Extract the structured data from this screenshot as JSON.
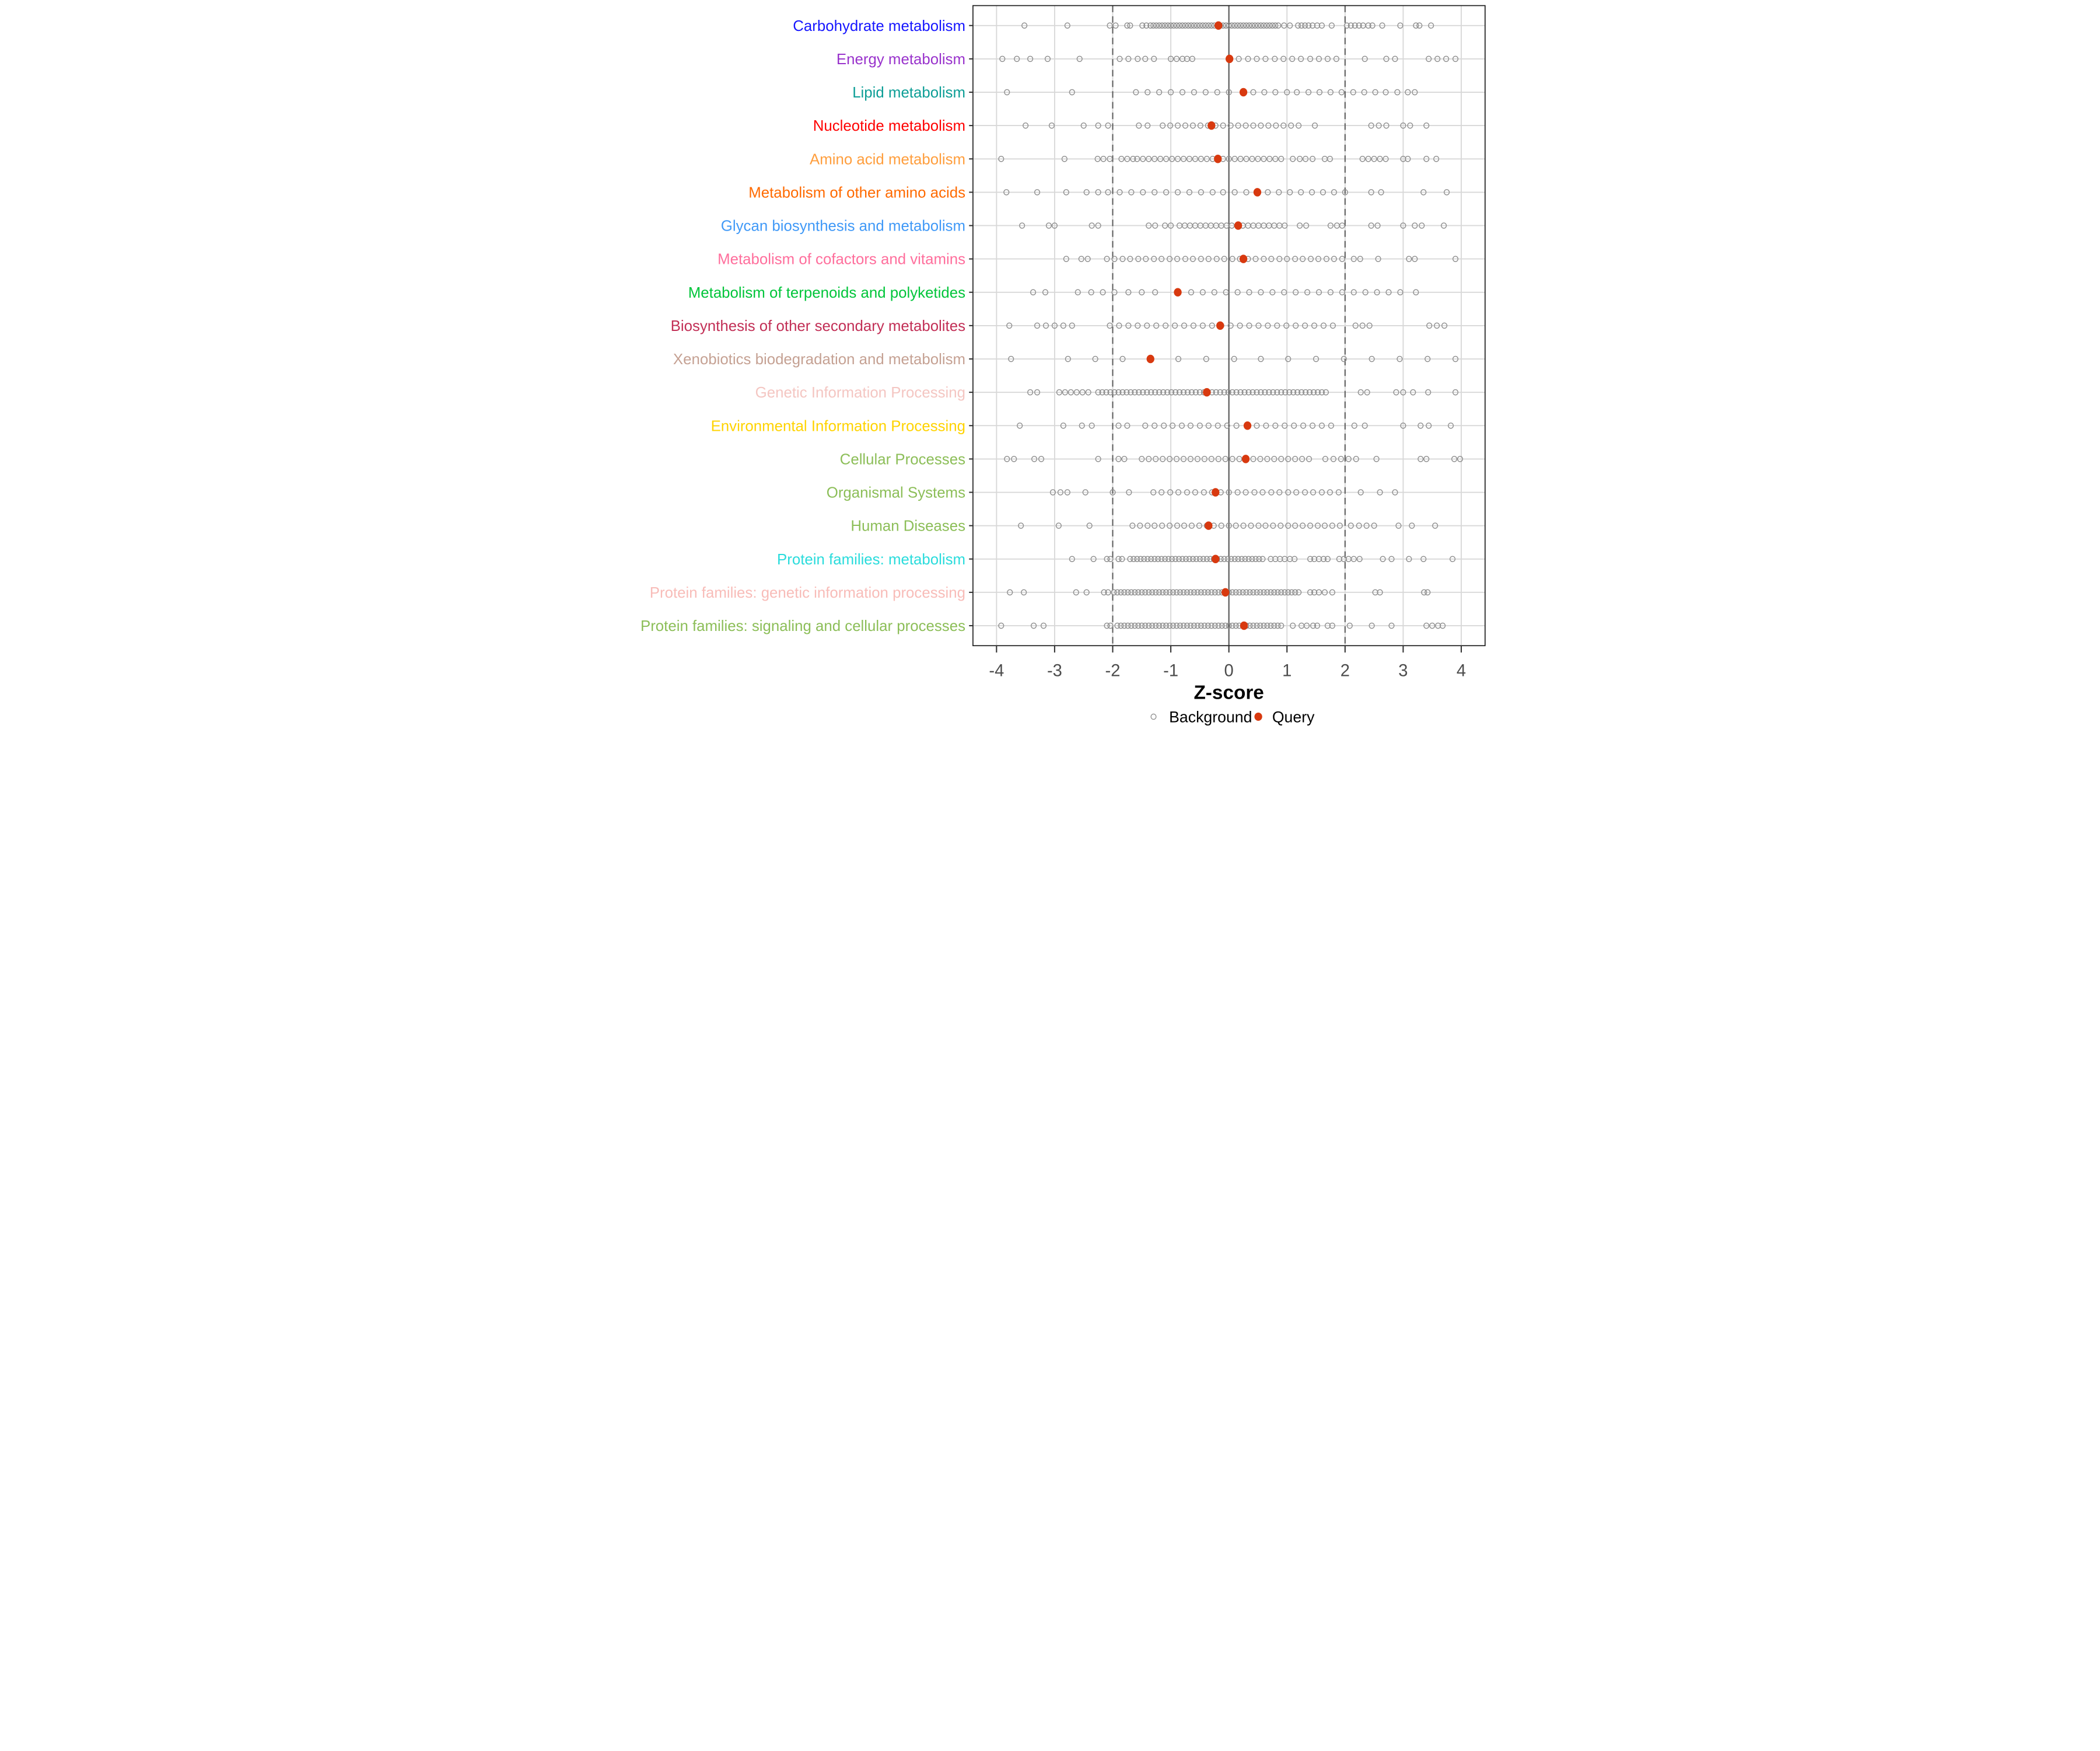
{
  "chart_data": {
    "type": "scatter",
    "subtype": "strip-dot-plot",
    "title": "",
    "xlabel": "Z-score",
    "ylabel": "",
    "xlim": [
      -4.4,
      4.4
    ],
    "x_ticks": [
      -4,
      -3,
      -2,
      -1,
      0,
      1,
      2,
      3,
      4
    ],
    "x_tick_labels": [
      "-4",
      "-3",
      "-2",
      "-1",
      "0",
      "1",
      "2",
      "3",
      "4"
    ],
    "grid": true,
    "reference_lines": {
      "solid_at": 0,
      "dashed_at": [
        -2,
        2
      ]
    },
    "legend_position": "bottom",
    "legend": [
      {
        "label": "Background",
        "marker": "open-circle",
        "color": "#8E8E8E"
      },
      {
        "label": "Query",
        "marker": "filled-circle",
        "color": "#D8390F"
      }
    ],
    "colors": {
      "query": "#D8390F",
      "background_stroke": "#8E8E8E",
      "grid_light": "#D8D8D8",
      "dashed_line": "#5E5E5E",
      "zero_line": "#555555",
      "panel_border": "#1A1A1A",
      "axis_text": "#4D4D4D",
      "axis_title": "#000000"
    },
    "rows": [
      {
        "label": "Carbohydrate metabolism",
        "label_color": "#1616FF",
        "query": -0.18,
        "background": [
          -3.52,
          -2.78,
          -2.05,
          -1.95,
          -1.75,
          -1.7,
          -1.49,
          -1.42,
          -1.35,
          -1.3,
          -1.25,
          -1.2,
          -1.15,
          -1.1,
          -1.05,
          -1.0,
          -0.95,
          -0.9,
          -0.85,
          -0.8,
          -0.75,
          -0.7,
          -0.65,
          -0.6,
          -0.55,
          -0.5,
          -0.45,
          -0.4,
          -0.35,
          -0.3,
          -0.25,
          -0.2,
          -0.15,
          -0.1,
          -0.05,
          0.0,
          0.05,
          0.1,
          0.15,
          0.2,
          0.25,
          0.3,
          0.35,
          0.4,
          0.45,
          0.5,
          0.55,
          0.6,
          0.65,
          0.7,
          0.75,
          0.8,
          0.85,
          0.95,
          1.05,
          1.19,
          1.25,
          1.31,
          1.37,
          1.44,
          1.52,
          1.6,
          1.77,
          2.03,
          2.1,
          2.17,
          2.24,
          2.31,
          2.4,
          2.47,
          2.64,
          2.95,
          3.22,
          3.28,
          3.48
        ]
      },
      {
        "label": "Energy metabolism",
        "label_color": "#9933CC",
        "query": 0.01,
        "background": [
          -3.9,
          -3.65,
          -3.42,
          -3.12,
          -2.57,
          -1.88,
          -1.73,
          -1.57,
          -1.44,
          -1.29,
          -1.0,
          -0.9,
          -0.8,
          -0.72,
          -0.63,
          0.02,
          0.17,
          0.33,
          0.48,
          0.63,
          0.79,
          0.94,
          1.09,
          1.24,
          1.4,
          1.55,
          1.7,
          1.85,
          2.34,
          2.71,
          2.86,
          3.44,
          3.59,
          3.74,
          3.9
        ]
      },
      {
        "label": "Lipid metabolism",
        "label_color": "#0D9E96",
        "query": 0.25,
        "background": [
          -3.82,
          -2.7,
          -1.6,
          -1.4,
          -1.2,
          -1.0,
          -0.8,
          -0.6,
          -0.4,
          -0.2,
          0.0,
          0.42,
          0.61,
          0.8,
          1.0,
          1.17,
          1.37,
          1.56,
          1.75,
          1.94,
          2.14,
          2.33,
          2.52,
          2.7,
          2.9,
          3.08,
          3.2
        ]
      },
      {
        "label": "Nucleotide metabolism",
        "label_color": "#FF0000",
        "query": -0.3,
        "background": [
          -3.5,
          -3.05,
          -2.5,
          -2.25,
          -2.08,
          -1.55,
          -1.4,
          -1.14,
          -1.01,
          -0.88,
          -0.75,
          -0.62,
          -0.49,
          -0.36,
          -0.23,
          -0.1,
          0.03,
          0.16,
          0.29,
          0.42,
          0.55,
          0.68,
          0.81,
          0.94,
          1.07,
          1.2,
          1.48,
          2.45,
          2.58,
          2.71,
          3.0,
          3.12,
          3.4
        ]
      },
      {
        "label": "Amino acid metabolism",
        "label_color": "#FF9E3D",
        "query": -0.19,
        "background": [
          -3.92,
          -2.83,
          -2.26,
          -2.16,
          -2.05,
          -1.85,
          -1.75,
          -1.65,
          -1.58,
          -1.48,
          -1.38,
          -1.28,
          -1.18,
          -1.08,
          -0.98,
          -0.88,
          -0.78,
          -0.68,
          -0.58,
          -0.48,
          -0.38,
          -0.28,
          -0.1,
          0.0,
          0.1,
          0.2,
          0.3,
          0.4,
          0.5,
          0.6,
          0.7,
          0.8,
          0.9,
          1.1,
          1.22,
          1.32,
          1.44,
          1.65,
          1.74,
          2.3,
          2.4,
          2.5,
          2.6,
          2.7,
          3.0,
          3.08,
          3.4,
          3.57
        ]
      },
      {
        "label": "Metabolism of other amino acids",
        "label_color": "#FF6A00",
        "query": 0.49,
        "background": [
          -3.83,
          -3.3,
          -2.8,
          -2.45,
          -2.25,
          -2.08,
          -1.88,
          -1.68,
          -1.48,
          -1.28,
          -1.08,
          -0.88,
          -0.68,
          -0.48,
          -0.28,
          -0.1,
          0.1,
          0.3,
          0.67,
          0.86,
          1.05,
          1.24,
          1.43,
          1.62,
          1.81,
          2.0,
          2.45,
          2.62,
          3.35,
          3.75
        ]
      },
      {
        "label": "Glycan biosynthesis and metabolism",
        "label_color": "#4099F7",
        "query": 0.16,
        "background": [
          -3.56,
          -3.1,
          -3.0,
          -2.36,
          -2.25,
          -1.38,
          -1.27,
          -1.1,
          -1.0,
          -0.85,
          -0.76,
          -0.67,
          -0.58,
          -0.49,
          -0.4,
          -0.31,
          -0.22,
          -0.13,
          -0.04,
          0.05,
          0.24,
          0.33,
          0.42,
          0.51,
          0.6,
          0.69,
          0.78,
          0.87,
          0.96,
          1.22,
          1.33,
          1.75,
          1.86,
          1.95,
          2.45,
          2.56,
          3.0,
          3.2,
          3.32,
          3.7
        ]
      },
      {
        "label": "Metabolism of cofactors and vitamins",
        "label_color": "#FF6E9C",
        "query": 0.25,
        "background": [
          -2.8,
          -2.54,
          -2.43,
          -2.1,
          -1.97,
          -1.83,
          -1.7,
          -1.56,
          -1.43,
          -1.29,
          -1.16,
          -1.02,
          -0.89,
          -0.75,
          -0.62,
          -0.48,
          -0.35,
          -0.21,
          -0.08,
          0.06,
          0.19,
          0.33,
          0.46,
          0.6,
          0.73,
          0.87,
          1.0,
          1.14,
          1.27,
          1.41,
          1.54,
          1.68,
          1.81,
          1.95,
          2.15,
          2.26,
          2.57,
          3.1,
          3.2,
          3.9
        ]
      },
      {
        "label": "Metabolism of terpenoids and polyketides",
        "label_color": "#00C53A",
        "query": -0.88,
        "background": [
          -3.37,
          -3.16,
          -2.6,
          -2.37,
          -2.17,
          -1.97,
          -1.73,
          -1.5,
          -1.27,
          -0.65,
          -0.45,
          -0.25,
          -0.05,
          0.15,
          0.35,
          0.55,
          0.75,
          0.95,
          1.15,
          1.35,
          1.55,
          1.75,
          1.95,
          2.15,
          2.35,
          2.55,
          2.75,
          2.95,
          3.22
        ]
      },
      {
        "label": "Biosynthesis of other secondary metabolites",
        "label_color": "#C22F56",
        "query": -0.15,
        "background": [
          -3.78,
          -3.3,
          -3.15,
          -3.0,
          -2.85,
          -2.7,
          -2.05,
          -1.89,
          -1.73,
          -1.57,
          -1.41,
          -1.25,
          -1.09,
          -0.93,
          -0.77,
          -0.61,
          -0.45,
          -0.29,
          -0.13,
          0.03,
          0.19,
          0.35,
          0.51,
          0.67,
          0.83,
          0.99,
          1.15,
          1.31,
          1.47,
          1.63,
          1.79,
          2.18,
          2.3,
          2.42,
          3.45,
          3.58,
          3.71
        ]
      },
      {
        "label": "Xenobiotics biodegradation and metabolism",
        "label_color": "#C5A193",
        "query": -1.35,
        "background": [
          -3.75,
          -2.77,
          -2.3,
          -1.83,
          -0.87,
          -0.39,
          0.09,
          0.55,
          1.02,
          1.5,
          1.98,
          2.46,
          2.94,
          3.42,
          3.9
        ]
      },
      {
        "label": "Genetic Information Processing",
        "label_color": "#F4C6C2",
        "query": -0.38,
        "background": [
          -3.42,
          -3.3,
          -2.92,
          -2.82,
          -2.72,
          -2.62,
          -2.52,
          -2.42,
          -2.25,
          -2.18,
          -2.11,
          -2.04,
          -1.97,
          -1.9,
          -1.83,
          -1.76,
          -1.69,
          -1.62,
          -1.55,
          -1.48,
          -1.41,
          -1.34,
          -1.27,
          -1.2,
          -1.13,
          -1.06,
          -0.99,
          -0.92,
          -0.85,
          -0.78,
          -0.71,
          -0.64,
          -0.57,
          -0.5,
          -0.43,
          -0.36,
          -0.29,
          -0.22,
          -0.15,
          -0.08,
          -0.01,
          0.06,
          0.13,
          0.2,
          0.27,
          0.34,
          0.41,
          0.48,
          0.55,
          0.62,
          0.69,
          0.76,
          0.83,
          0.9,
          0.97,
          1.04,
          1.11,
          1.18,
          1.25,
          1.32,
          1.39,
          1.46,
          1.53,
          1.6,
          1.67,
          2.27,
          2.38,
          2.88,
          3.0,
          3.17,
          3.43,
          3.9
        ]
      },
      {
        "label": "Environmental Information Processing",
        "label_color": "#FFD300",
        "query": 0.32,
        "background": [
          -3.6,
          -2.85,
          -2.53,
          -2.36,
          -1.9,
          -1.75,
          -1.44,
          -1.28,
          -1.12,
          -0.97,
          -0.81,
          -0.66,
          -0.5,
          -0.35,
          -0.19,
          -0.03,
          0.13,
          0.48,
          0.64,
          0.8,
          0.96,
          1.12,
          1.28,
          1.44,
          1.6,
          1.76,
          2.16,
          2.34,
          3.0,
          3.3,
          3.44,
          3.82
        ]
      },
      {
        "label": "Cellular Processes",
        "label_color": "#8CBE58",
        "query": 0.29,
        "background": [
          -3.82,
          -3.7,
          -3.35,
          -3.23,
          -2.25,
          -1.9,
          -1.8,
          -1.5,
          -1.38,
          -1.26,
          -1.14,
          -1.02,
          -0.9,
          -0.78,
          -0.66,
          -0.54,
          -0.42,
          -0.3,
          -0.18,
          -0.06,
          0.06,
          0.18,
          0.3,
          0.42,
          0.54,
          0.66,
          0.78,
          0.9,
          1.02,
          1.14,
          1.26,
          1.38,
          1.66,
          1.8,
          1.93,
          2.06,
          2.19,
          2.54,
          3.3,
          3.4,
          3.88,
          3.98
        ]
      },
      {
        "label": "Organismal Systems",
        "label_color": "#8CBE58",
        "query": -0.23,
        "background": [
          -3.03,
          -2.9,
          -2.78,
          -2.47,
          -2.0,
          -1.72,
          -1.3,
          -1.16,
          -1.01,
          -0.87,
          -0.72,
          -0.58,
          -0.43,
          -0.29,
          -0.14,
          0.0,
          0.15,
          0.29,
          0.44,
          0.58,
          0.73,
          0.87,
          1.02,
          1.16,
          1.31,
          1.45,
          1.6,
          1.74,
          1.89,
          2.27,
          2.6,
          2.86
        ]
      },
      {
        "label": "Human Diseases",
        "label_color": "#8CBE58",
        "query": -0.35,
        "background": [
          -3.58,
          -2.93,
          -2.4,
          -1.66,
          -1.53,
          -1.4,
          -1.28,
          -1.15,
          -1.02,
          -0.89,
          -0.77,
          -0.64,
          -0.51,
          -0.38,
          -0.26,
          -0.13,
          0.0,
          0.12,
          0.25,
          0.38,
          0.51,
          0.63,
          0.76,
          0.89,
          1.02,
          1.14,
          1.27,
          1.4,
          1.53,
          1.65,
          1.78,
          1.91,
          2.1,
          2.24,
          2.37,
          2.5,
          2.92,
          3.15,
          3.55
        ]
      },
      {
        "label": "Protein families: metabolism",
        "label_color": "#2ADCDC",
        "query": -0.23,
        "background": [
          -2.7,
          -2.33,
          -2.1,
          -2.04,
          -1.9,
          -1.84,
          -1.7,
          -1.64,
          -1.58,
          -1.52,
          -1.46,
          -1.4,
          -1.34,
          -1.28,
          -1.22,
          -1.16,
          -1.1,
          -1.04,
          -0.98,
          -0.92,
          -0.86,
          -0.8,
          -0.74,
          -0.68,
          -0.62,
          -0.56,
          -0.5,
          -0.44,
          -0.38,
          -0.32,
          -0.26,
          -0.2,
          -0.14,
          -0.08,
          -0.02,
          0.04,
          0.1,
          0.16,
          0.22,
          0.28,
          0.34,
          0.4,
          0.46,
          0.52,
          0.58,
          0.72,
          0.8,
          0.88,
          0.96,
          1.05,
          1.13,
          1.4,
          1.47,
          1.55,
          1.63,
          1.7,
          1.9,
          1.98,
          2.06,
          2.15,
          2.25,
          2.65,
          2.8,
          3.1,
          3.35,
          3.85
        ]
      },
      {
        "label": "Protein families: genetic information processing",
        "label_color": "#F8BCB8",
        "query": -0.06,
        "background": [
          -3.77,
          -3.53,
          -2.63,
          -2.45,
          -2.15,
          -2.08,
          -1.98,
          -1.92,
          -1.86,
          -1.8,
          -1.74,
          -1.68,
          -1.62,
          -1.56,
          -1.5,
          -1.44,
          -1.38,
          -1.32,
          -1.26,
          -1.2,
          -1.14,
          -1.08,
          -1.02,
          -0.96,
          -0.9,
          -0.84,
          -0.78,
          -0.72,
          -0.66,
          -0.6,
          -0.54,
          -0.48,
          -0.42,
          -0.36,
          -0.3,
          -0.24,
          -0.18,
          -0.12,
          -0.06,
          0.0,
          0.06,
          0.12,
          0.18,
          0.24,
          0.3,
          0.36,
          0.42,
          0.48,
          0.54,
          0.6,
          0.66,
          0.72,
          0.78,
          0.84,
          0.9,
          0.96,
          1.02,
          1.08,
          1.14,
          1.2,
          1.4,
          1.47,
          1.55,
          1.65,
          1.78,
          2.52,
          2.6,
          3.36,
          3.42
        ]
      },
      {
        "label": "Protein families: signaling and cellular processes",
        "label_color": "#8CBE58",
        "query": 0.26,
        "background": [
          -3.92,
          -3.36,
          -3.19,
          -2.1,
          -2.04,
          -1.92,
          -1.86,
          -1.8,
          -1.74,
          -1.68,
          -1.62,
          -1.56,
          -1.5,
          -1.44,
          -1.38,
          -1.32,
          -1.26,
          -1.2,
          -1.14,
          -1.08,
          -1.02,
          -0.96,
          -0.9,
          -0.84,
          -0.78,
          -0.72,
          -0.66,
          -0.6,
          -0.54,
          -0.48,
          -0.42,
          -0.36,
          -0.3,
          -0.24,
          -0.18,
          -0.12,
          -0.06,
          0.0,
          0.06,
          0.12,
          0.18,
          0.24,
          0.3,
          0.36,
          0.42,
          0.48,
          0.54,
          0.6,
          0.66,
          0.72,
          0.78,
          0.84,
          0.9,
          1.1,
          1.25,
          1.34,
          1.45,
          1.52,
          1.7,
          1.78,
          2.08,
          2.46,
          2.8,
          3.4,
          3.5,
          3.6,
          3.68
        ]
      }
    ]
  }
}
